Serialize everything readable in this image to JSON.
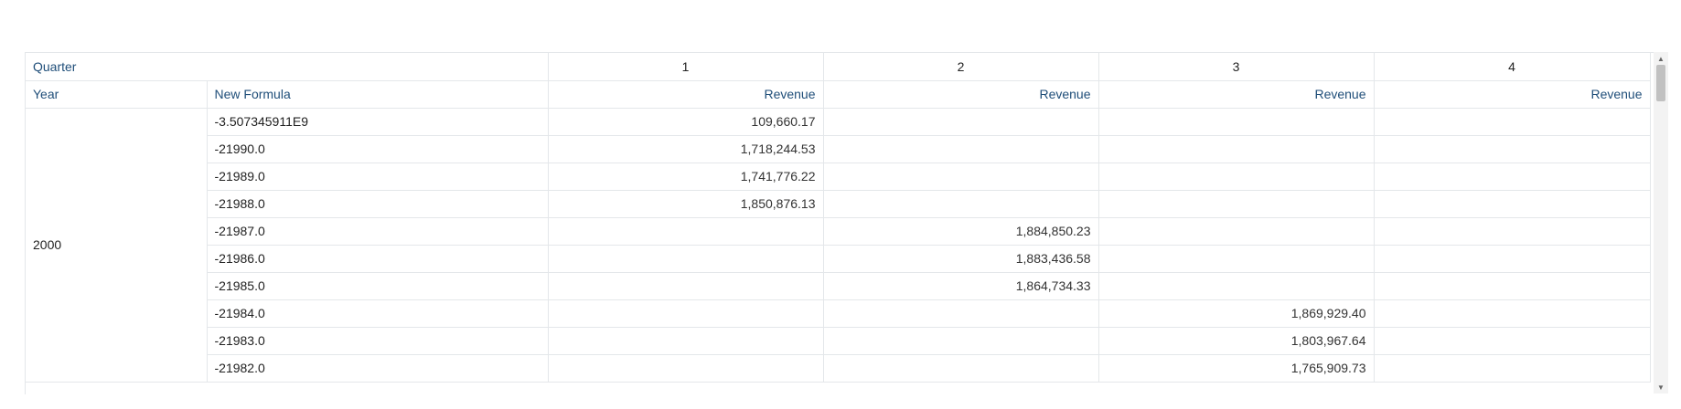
{
  "table": {
    "header_row1": {
      "label": "Quarter",
      "quarters": [
        "1",
        "2",
        "3",
        "4"
      ]
    },
    "header_row2": {
      "year_label": "Year",
      "formula_label": "New Formula",
      "measure": "Revenue"
    },
    "year": "2000",
    "rows": [
      {
        "formula": "-3.507345911E9",
        "q1": "109,660.17",
        "q2": "",
        "q3": "",
        "q4": ""
      },
      {
        "formula": "-21990.0",
        "q1": "1,718,244.53",
        "q2": "",
        "q3": "",
        "q4": ""
      },
      {
        "formula": "-21989.0",
        "q1": "1,741,776.22",
        "q2": "",
        "q3": "",
        "q4": ""
      },
      {
        "formula": "-21988.0",
        "q1": "1,850,876.13",
        "q2": "",
        "q3": "",
        "q4": ""
      },
      {
        "formula": "-21987.0",
        "q1": "",
        "q2": "1,884,850.23",
        "q3": "",
        "q4": ""
      },
      {
        "formula": "-21986.0",
        "q1": "",
        "q2": "1,883,436.58",
        "q3": "",
        "q4": ""
      },
      {
        "formula": "-21985.0",
        "q1": "",
        "q2": "1,864,734.33",
        "q3": "",
        "q4": ""
      },
      {
        "formula": "-21984.0",
        "q1": "",
        "q2": "",
        "q3": "1,869,929.40",
        "q4": ""
      },
      {
        "formula": "-21983.0",
        "q1": "",
        "q2": "",
        "q3": "1,803,967.64",
        "q4": ""
      },
      {
        "formula": "-21982.0",
        "q1": "",
        "q2": "",
        "q3": "1,765,909.73",
        "q4": ""
      }
    ]
  },
  "scrollbar": {
    "up_icon": "▲",
    "down_icon": "▼"
  }
}
